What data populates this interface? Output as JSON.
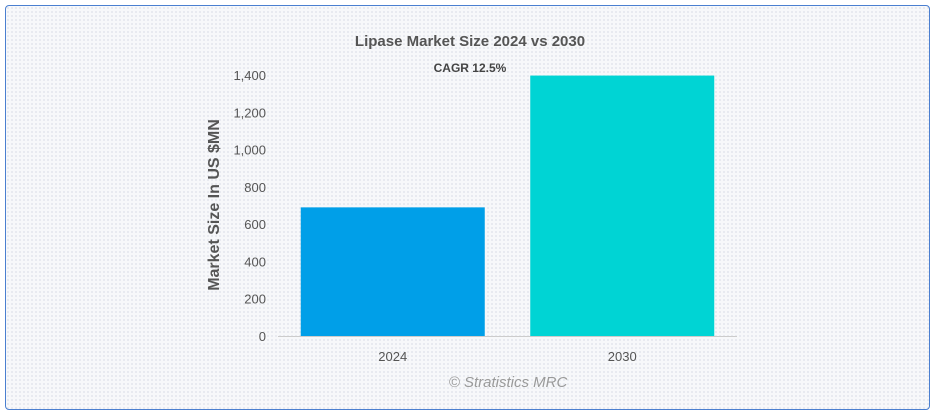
{
  "chart_data": {
    "type": "bar",
    "title": "Lipase Market Size 2024 vs 2030",
    "subtitle": "CAGR 12.5%",
    "xlabel": "",
    "ylabel": "Market Size In US $MN",
    "categories": [
      "2024",
      "2030"
    ],
    "values": [
      690,
      1397
    ],
    "ylim": [
      0,
      1400
    ],
    "yticks": [
      0,
      200,
      400,
      600,
      800,
      1000,
      1200,
      1400
    ],
    "ytick_labels": [
      "0",
      "200",
      "400",
      "600",
      "800",
      "1,000",
      "1,200",
      "1,400"
    ],
    "colors": [
      "#009fe8",
      "#00d4d4"
    ],
    "grid": false,
    "legend": "none"
  },
  "credit": "© Stratistics MRC"
}
